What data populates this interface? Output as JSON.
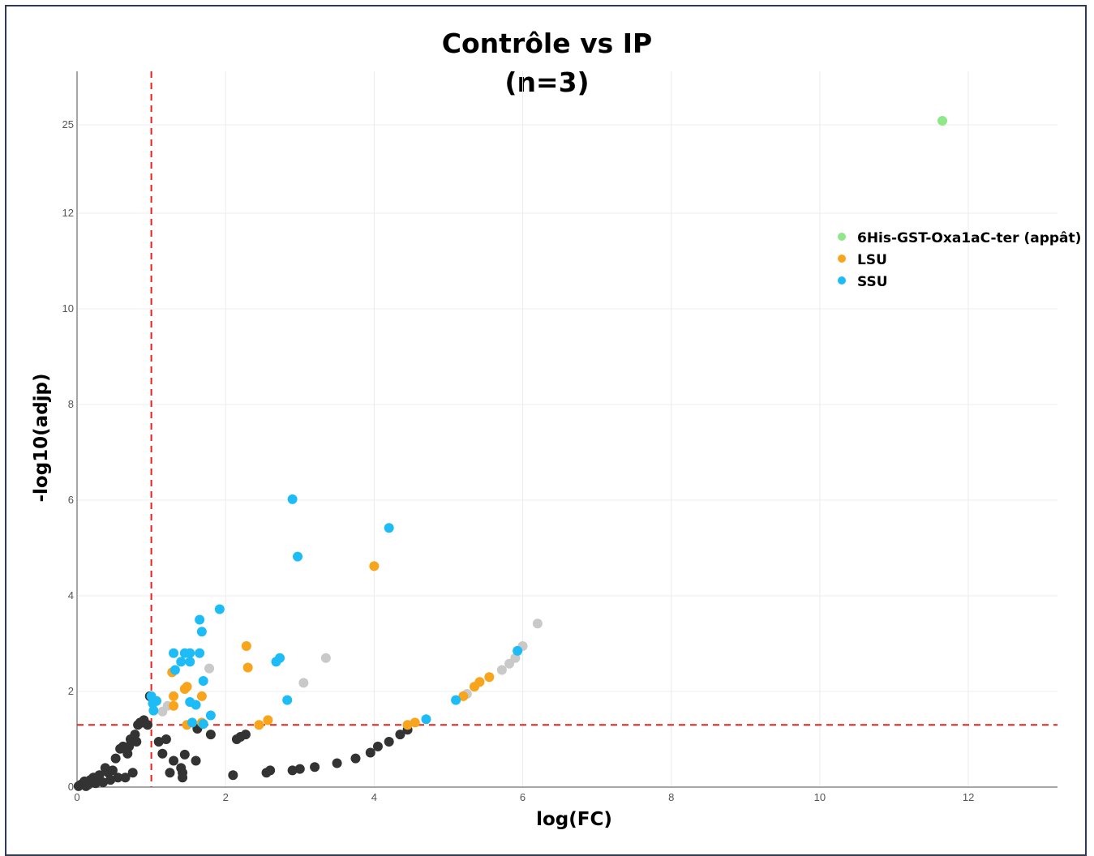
{
  "chart_data": {
    "type": "scatter",
    "title_line1": "Contrôle vs IP",
    "title_line2": "(n=3)",
    "xlabel": "log(FC)",
    "ylabel": "-log10(adjp)",
    "xlim": [
      0,
      13.2
    ],
    "x_ticks": [
      0,
      2,
      4,
      6,
      8,
      10,
      12
    ],
    "y_tick_labels": [
      "0",
      "2",
      "4",
      "6",
      "8",
      "10",
      "12",
      "25"
    ],
    "y_axis_note": "broken axis: ticks 0–12 then 25",
    "grid": true,
    "legend_position": "top-right",
    "thresholds": {
      "x": 1.0,
      "y": 1.3,
      "color": "#e8201a",
      "style": "dashed"
    },
    "series": [
      {
        "name": "6His-GST-Oxa1aC-ter (appât)",
        "color": "#8ee88a",
        "points": [
          [
            11.65,
            25.6
          ]
        ]
      },
      {
        "name": "LSU",
        "color": "#f8a41c",
        "points": [
          [
            1.28,
            2.4
          ],
          [
            1.45,
            2.05
          ],
          [
            1.48,
            2.1
          ],
          [
            1.3,
            1.9
          ],
          [
            1.3,
            1.7
          ],
          [
            1.48,
            1.3
          ],
          [
            1.68,
            1.9
          ],
          [
            1.68,
            1.35
          ],
          [
            2.28,
            2.95
          ],
          [
            2.3,
            2.5
          ],
          [
            2.45,
            1.3
          ],
          [
            2.57,
            1.4
          ],
          [
            4.0,
            4.62
          ],
          [
            4.45,
            1.3
          ],
          [
            4.55,
            1.35
          ],
          [
            5.2,
            1.9
          ],
          [
            5.35,
            2.1
          ],
          [
            5.42,
            2.2
          ],
          [
            5.55,
            2.3
          ]
        ]
      },
      {
        "name": "SSU",
        "color": "#1ebcf7",
        "points": [
          [
            2.9,
            6.02
          ],
          [
            4.2,
            5.42
          ],
          [
            2.97,
            4.82
          ],
          [
            1.92,
            3.72
          ],
          [
            1.65,
            3.5
          ],
          [
            1.68,
            3.25
          ],
          [
            1.3,
            2.8
          ],
          [
            1.45,
            2.8
          ],
          [
            1.52,
            2.8
          ],
          [
            1.65,
            2.8
          ],
          [
            1.4,
            2.62
          ],
          [
            1.52,
            2.62
          ],
          [
            1.32,
            2.45
          ],
          [
            1.7,
            2.22
          ],
          [
            2.68,
            2.62
          ],
          [
            2.73,
            2.7
          ],
          [
            2.83,
            1.82
          ],
          [
            1.0,
            1.9
          ],
          [
            1.07,
            1.8
          ],
          [
            1.02,
            1.75
          ],
          [
            1.03,
            1.6
          ],
          [
            1.52,
            1.78
          ],
          [
            1.6,
            1.72
          ],
          [
            1.8,
            1.5
          ],
          [
            1.55,
            1.35
          ],
          [
            1.7,
            1.32
          ],
          [
            5.1,
            1.82
          ],
          [
            4.7,
            1.42
          ],
          [
            5.93,
            2.85
          ]
        ]
      },
      {
        "name": "",
        "color": "#c9c9c9",
        "points": [
          [
            1.78,
            2.48
          ],
          [
            1.15,
            1.58
          ],
          [
            1.22,
            1.7
          ],
          [
            3.05,
            2.18
          ],
          [
            3.35,
            2.7
          ],
          [
            5.25,
            1.95
          ],
          [
            5.72,
            2.45
          ],
          [
            5.82,
            2.58
          ],
          [
            5.9,
            2.7
          ],
          [
            6.0,
            2.95
          ],
          [
            6.2,
            3.42
          ]
        ]
      },
      {
        "name": "",
        "color": "#333333",
        "points": [
          [
            0.02,
            0.02
          ],
          [
            0.05,
            0.05
          ],
          [
            0.08,
            0.08
          ],
          [
            0.1,
            0.12
          ],
          [
            0.12,
            0.02
          ],
          [
            0.15,
            0.05
          ],
          [
            0.18,
            0.15
          ],
          [
            0.22,
            0.2
          ],
          [
            0.25,
            0.08
          ],
          [
            0.3,
            0.25
          ],
          [
            0.35,
            0.1
          ],
          [
            0.38,
            0.4
          ],
          [
            0.42,
            0.3
          ],
          [
            0.45,
            0.15
          ],
          [
            0.48,
            0.35
          ],
          [
            0.52,
            0.6
          ],
          [
            0.55,
            0.2
          ],
          [
            0.58,
            0.8
          ],
          [
            0.62,
            0.85
          ],
          [
            0.65,
            0.2
          ],
          [
            0.68,
            0.7
          ],
          [
            0.7,
            0.85
          ],
          [
            0.72,
            1.0
          ],
          [
            0.75,
            0.3
          ],
          [
            0.78,
            1.1
          ],
          [
            0.8,
            0.95
          ],
          [
            0.82,
            1.3
          ],
          [
            0.85,
            1.35
          ],
          [
            0.88,
            1.35
          ],
          [
            0.9,
            1.4
          ],
          [
            0.95,
            1.3
          ],
          [
            0.98,
            1.9
          ],
          [
            1.1,
            0.95
          ],
          [
            1.15,
            0.7
          ],
          [
            1.2,
            1.0
          ],
          [
            1.25,
            0.3
          ],
          [
            1.3,
            0.55
          ],
          [
            1.4,
            0.4
          ],
          [
            1.42,
            0.3
          ],
          [
            1.45,
            0.68
          ],
          [
            1.42,
            0.2
          ],
          [
            1.6,
            0.55
          ],
          [
            1.62,
            1.22
          ],
          [
            1.8,
            1.1
          ],
          [
            2.1,
            0.25
          ],
          [
            2.15,
            1.0
          ],
          [
            2.2,
            1.05
          ],
          [
            2.27,
            1.1
          ],
          [
            2.55,
            0.3
          ],
          [
            2.6,
            0.35
          ],
          [
            2.9,
            0.35
          ],
          [
            3.0,
            0.38
          ],
          [
            3.2,
            0.42
          ],
          [
            3.5,
            0.5
          ],
          [
            3.75,
            0.6
          ],
          [
            3.95,
            0.72
          ],
          [
            4.05,
            0.85
          ],
          [
            4.2,
            0.95
          ],
          [
            4.35,
            1.1
          ],
          [
            4.45,
            1.2
          ]
        ]
      }
    ]
  }
}
